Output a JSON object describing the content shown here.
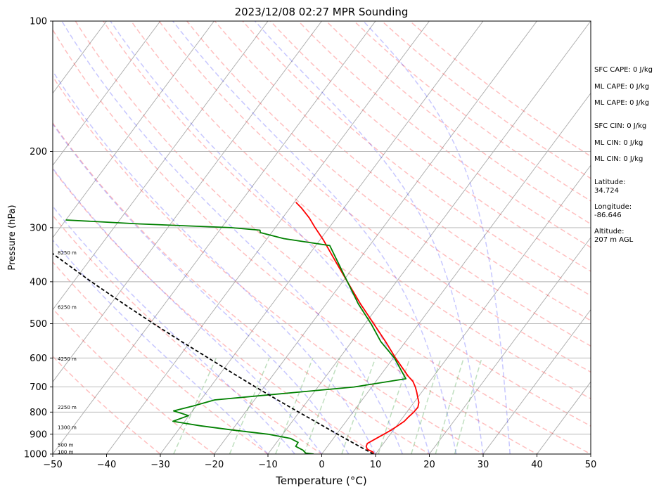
{
  "chart_data": {
    "type": "skew-t",
    "title": "2023/12/08 02:27 MPR Sounding",
    "xlabel": "Temperature (°C)",
    "ylabel": "Pressure (hPa)",
    "xlim": [
      -50,
      50
    ],
    "ylim": [
      1000,
      100
    ],
    "y_scale": "log",
    "grid": true,
    "x_ticks": [
      -50,
      -40,
      -30,
      -20,
      -10,
      0,
      10,
      20,
      30,
      40,
      50
    ],
    "x_tick_labels": [
      "−50",
      "−40",
      "−30",
      "−20",
      "−10",
      "0",
      "10",
      "20",
      "30",
      "40",
      "50"
    ],
    "y_ticks": [
      1000,
      900,
      800,
      700,
      600,
      500,
      400,
      300,
      200,
      100
    ],
    "y_tick_labels": [
      "1000",
      "900",
      "800",
      "700",
      "600",
      "500",
      "400",
      "300",
      "200",
      "100"
    ],
    "series": [
      {
        "role": "temperature",
        "color": "#ff0000",
        "points": [
          {
            "p": 1000,
            "t": 9.6
          },
          {
            "p": 990,
            "t": 9.3
          },
          {
            "p": 975,
            "t": 7.8
          },
          {
            "p": 960,
            "t": 7.2
          },
          {
            "p": 945,
            "t": 7.0
          },
          {
            "p": 930,
            "t": 7.6
          },
          {
            "p": 915,
            "t": 8.2
          },
          {
            "p": 900,
            "t": 8.8
          },
          {
            "p": 880,
            "t": 9.6
          },
          {
            "p": 860,
            "t": 10.2
          },
          {
            "p": 840,
            "t": 10.8
          },
          {
            "p": 820,
            "t": 11.0
          },
          {
            "p": 800,
            "t": 11.3
          },
          {
            "p": 780,
            "t": 11.4
          },
          {
            "p": 760,
            "t": 10.9
          },
          {
            "p": 740,
            "t": 10.0
          },
          {
            "p": 720,
            "t": 9.1
          },
          {
            "p": 700,
            "t": 8.1
          },
          {
            "p": 680,
            "t": 6.9
          },
          {
            "p": 660,
            "t": 5.2
          },
          {
            "p": 600,
            "t": 0.4
          },
          {
            "p": 550,
            "t": -3.7
          },
          {
            "p": 500,
            "t": -8.4
          },
          {
            "p": 450,
            "t": -13.6
          },
          {
            "p": 400,
            "t": -19.1
          },
          {
            "p": 350,
            "t": -25.3
          },
          {
            "p": 320,
            "t": -29.4
          },
          {
            "p": 300,
            "t": -32.6
          },
          {
            "p": 285,
            "t": -35.0
          },
          {
            "p": 270,
            "t": -37.9
          },
          {
            "p": 262,
            "t": -39.7
          }
        ]
      },
      {
        "role": "dewpoint",
        "color": "#008000",
        "points": [
          {
            "p": 1000,
            "t": -1.5
          },
          {
            "p": 995,
            "t": -3.1
          },
          {
            "p": 980,
            "t": -4.0
          },
          {
            "p": 960,
            "t": -5.9
          },
          {
            "p": 940,
            "t": -6.0
          },
          {
            "p": 920,
            "t": -8.0
          },
          {
            "p": 900,
            "t": -12.7
          },
          {
            "p": 880,
            "t": -19.9
          },
          {
            "p": 860,
            "t": -26.6
          },
          {
            "p": 840,
            "t": -32.2
          },
          {
            "p": 815,
            "t": -30.1
          },
          {
            "p": 795,
            "t": -33.5
          },
          {
            "p": 775,
            "t": -30.6
          },
          {
            "p": 750,
            "t": -27.4
          },
          {
            "p": 720,
            "t": -13.2
          },
          {
            "p": 700,
            "t": -3.3
          },
          {
            "p": 670,
            "t": 5.2
          },
          {
            "p": 600,
            "t": 0.2
          },
          {
            "p": 550,
            "t": -4.6
          },
          {
            "p": 500,
            "t": -8.9
          },
          {
            "p": 450,
            "t": -14.0
          },
          {
            "p": 400,
            "t": -19.1
          },
          {
            "p": 330,
            "t": -27.4
          },
          {
            "p": 318,
            "t": -36.9
          },
          {
            "p": 308,
            "t": -42.1
          },
          {
            "p": 304,
            "t": -42.5
          },
          {
            "p": 300,
            "t": -48.2
          },
          {
            "p": 294,
            "t": -66.0
          },
          {
            "p": 288,
            "t": -80.0
          }
        ]
      },
      {
        "role": "parcel",
        "color": "#000000",
        "dashed": true,
        "points": [
          {
            "p": 1000,
            "t": 9.6
          },
          {
            "p": 950,
            "t": 5.0
          },
          {
            "p": 900,
            "t": 0.2
          },
          {
            "p": 850,
            "t": -4.8
          },
          {
            "p": 800,
            "t": -10.1
          },
          {
            "p": 750,
            "t": -15.7
          },
          {
            "p": 700,
            "t": -21.6
          },
          {
            "p": 650,
            "t": -27.8
          },
          {
            "p": 600,
            "t": -34.4
          },
          {
            "p": 550,
            "t": -41.6
          },
          {
            "p": 500,
            "t": -49.3
          },
          {
            "p": 450,
            "t": -57.6
          },
          {
            "p": 400,
            "t": -66.7
          },
          {
            "p": 350,
            "t": -76.6
          },
          {
            "p": 300,
            "t": -87.6
          },
          {
            "p": 262,
            "t": -96.9
          }
        ]
      }
    ],
    "isotherms": [
      -130,
      -120,
      -110,
      -100,
      -90,
      -80,
      -70,
      -60,
      -50,
      -40,
      -30,
      -20,
      -10,
      0,
      10,
      20,
      30,
      40,
      50
    ],
    "dry_adiabats": [
      -30,
      -20,
      -10,
      0,
      10,
      20,
      30,
      40,
      50,
      60,
      70,
      80,
      90,
      100,
      110,
      120,
      130,
      140,
      150,
      160,
      170
    ],
    "moist_adiabats": [
      -10,
      -5,
      0,
      5,
      10,
      15,
      20,
      25,
      30,
      35
    ],
    "mixing_ratio_lines": [
      0.4,
      1,
      2,
      3,
      5,
      8,
      12,
      16,
      20
    ],
    "height_labels": [
      {
        "p": 988,
        "text": "100 m"
      },
      {
        "p": 953,
        "text": "500 m"
      },
      {
        "p": 867,
        "text": "1300 m"
      },
      {
        "p": 780,
        "text": "2250 m"
      },
      {
        "p": 603,
        "text": "4250 m"
      },
      {
        "p": 458,
        "text": "6250 m"
      },
      {
        "p": 343,
        "text": "8250 m"
      }
    ],
    "annotations": [
      "SFC CAPE: 0 J/kg",
      "ML CAPE: 0 J/kg",
      "ML CAPE: 0 J/kg",
      "SFC CIN: 0 J/kg",
      "ML CIN: 0 J/kg",
      "ML CIN: 0 J/kg",
      "Latitude:",
      "34.724",
      "Longitude:",
      "-86.646",
      "Altitude:",
      "207 m AGL"
    ]
  }
}
